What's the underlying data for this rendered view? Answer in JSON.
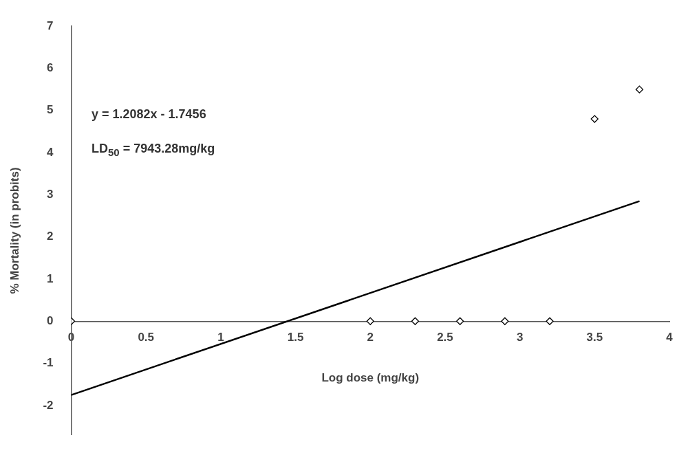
{
  "chart_data": {
    "type": "scatter",
    "xlabel": "Log dose (mg/kg)",
    "ylabel": "% Mortality (in probits)",
    "annotations": [
      "y = 1.2082x - 1.7456",
      "LD$_{50}$ = 7943.28mg/kg"
    ],
    "xlim": [
      0,
      4
    ],
    "xticks": [
      0,
      0.5,
      1,
      1.5,
      2,
      2.5,
      3,
      3.5,
      4
    ],
    "ylim": [
      -2.7,
      7
    ],
    "yticks": [
      -2,
      -1,
      0,
      1,
      2,
      3,
      4,
      5,
      6,
      7
    ],
    "series": [
      {
        "type": "scatter",
        "color": "#000000",
        "marker": "diamond",
        "x": [
          0,
          2,
          2.3,
          2.6,
          2.9,
          3.2,
          3.5,
          3.8
        ],
        "values": [
          0,
          0,
          0,
          0,
          0,
          0,
          4.8,
          5.5
        ]
      },
      {
        "type": "line",
        "color": "#000000",
        "marker": "none",
        "line_style": "solid",
        "x": [
          0,
          3.8
        ],
        "values": [
          -1.75,
          2.85
        ]
      }
    ]
  }
}
